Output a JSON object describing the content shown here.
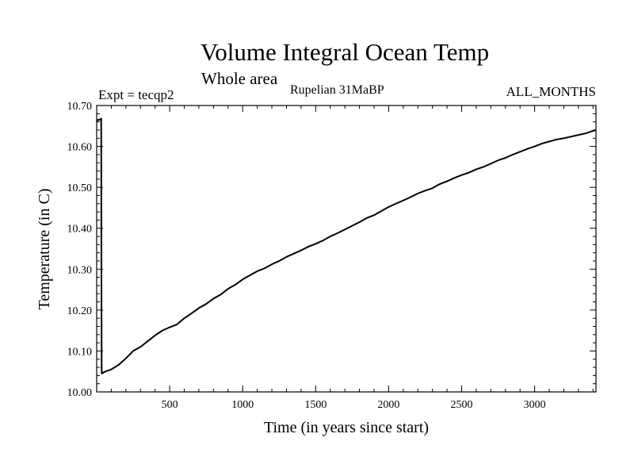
{
  "chart_data": {
    "type": "line",
    "title": "Volume Integral Ocean Temp",
    "subtitle": "Whole area",
    "annotations": {
      "left": "Expt = tecqp2",
      "center": "Rupelian  31MaBP",
      "right": "ALL_MONTHS"
    },
    "xlabel": "Time (in years since start)",
    "ylabel": "Temperature (in C)",
    "xlim": [
      0,
      3420
    ],
    "ylim": [
      10.0,
      10.7
    ],
    "x_ticks": [
      500,
      1000,
      1500,
      2000,
      2500,
      3000
    ],
    "x_tick_labels": [
      "500",
      "1000",
      "1500",
      "2000",
      "2500",
      "3000"
    ],
    "y_ticks": [
      10.0,
      10.1,
      10.2,
      10.3,
      10.4,
      10.5,
      10.6,
      10.7
    ],
    "y_tick_labels": [
      "10.00",
      "10.10",
      "10.20",
      "10.30",
      "10.40",
      "10.50",
      "10.60",
      "10.70"
    ],
    "grid": false,
    "series": [
      {
        "x": [
          0,
          10,
          20,
          30,
          31,
          32,
          33,
          34,
          35,
          60,
          100,
          150,
          200,
          250,
          300,
          350,
          400,
          450,
          500,
          550,
          600,
          650,
          700,
          750,
          800,
          850,
          900,
          950,
          1000,
          1050,
          1100,
          1150,
          1200,
          1250,
          1300,
          1350,
          1400,
          1450,
          1500,
          1550,
          1600,
          1650,
          1700,
          1750,
          1800,
          1850,
          1900,
          1950,
          2000,
          2050,
          2100,
          2150,
          2200,
          2250,
          2300,
          2350,
          2400,
          2450,
          2500,
          2550,
          2600,
          2650,
          2700,
          2750,
          2800,
          2850,
          2900,
          2950,
          3000,
          3050,
          3100,
          3150,
          3200,
          3250,
          3300,
          3350,
          3400,
          3420
        ],
        "y": [
          10.662,
          10.665,
          10.665,
          10.668,
          10.668,
          10.38,
          10.2,
          10.06,
          10.045,
          10.05,
          10.055,
          10.066,
          10.082,
          10.1,
          10.11,
          10.124,
          10.138,
          10.15,
          10.158,
          10.165,
          10.18,
          10.192,
          10.205,
          10.215,
          10.228,
          10.238,
          10.252,
          10.262,
          10.275,
          10.285,
          10.295,
          10.302,
          10.312,
          10.32,
          10.33,
          10.338,
          10.346,
          10.355,
          10.362,
          10.37,
          10.38,
          10.388,
          10.397,
          10.406,
          10.415,
          10.425,
          10.432,
          10.442,
          10.452,
          10.46,
          10.468,
          10.476,
          10.485,
          10.492,
          10.498,
          10.508,
          10.515,
          10.523,
          10.53,
          10.536,
          10.544,
          10.55,
          10.558,
          10.566,
          10.572,
          10.58,
          10.587,
          10.594,
          10.6,
          10.607,
          10.612,
          10.617,
          10.62,
          10.624,
          10.628,
          10.632,
          10.638,
          10.64
        ]
      }
    ],
    "colors": {
      "line": "#000000",
      "axes": "#000000",
      "background": "#ffffff"
    }
  }
}
